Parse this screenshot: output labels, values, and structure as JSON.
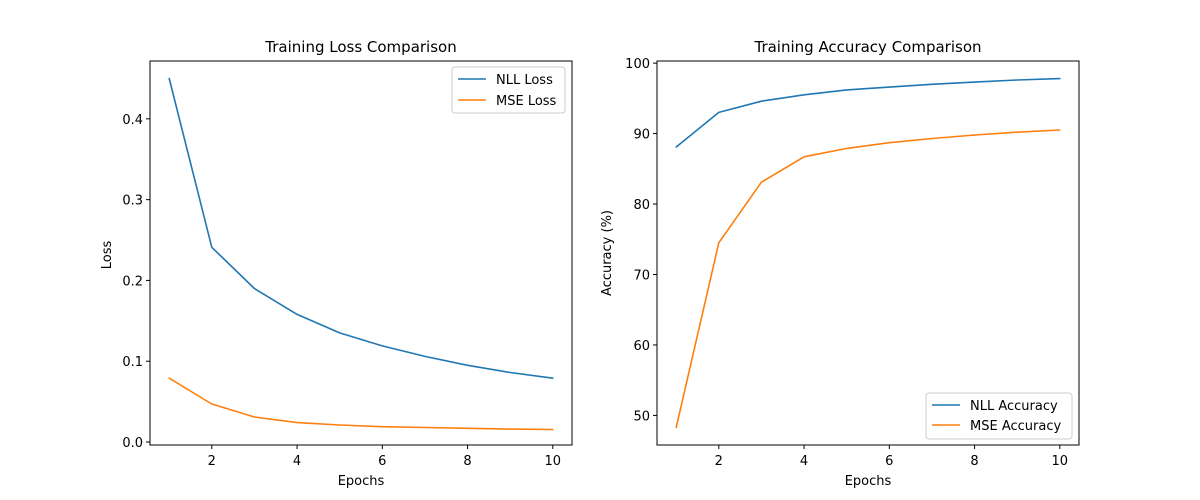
{
  "chart_data": [
    {
      "type": "line",
      "title": "Training Loss Comparison",
      "xlabel": "Epochs",
      "ylabel": "Loss",
      "x": [
        1,
        2,
        3,
        4,
        5,
        6,
        7,
        8,
        9,
        10
      ],
      "xlim": [
        0.55,
        10.45
      ],
      "ylim": [
        -0.0037,
        0.4716
      ],
      "xticks": [
        2,
        4,
        6,
        8,
        10
      ],
      "xtick_labels": [
        "2",
        "4",
        "6",
        "8",
        "10"
      ],
      "yticks": [
        0.0,
        0.1,
        0.2,
        0.3,
        0.4
      ],
      "ytick_labels": [
        "0.0",
        "0.1",
        "0.2",
        "0.3",
        "0.4"
      ],
      "legend_position": "top-right",
      "series": [
        {
          "name": "NLL Loss",
          "color": "#1f77b4",
          "values": [
            0.45,
            0.241,
            0.19,
            0.158,
            0.135,
            0.119,
            0.106,
            0.095,
            0.086,
            0.079
          ]
        },
        {
          "name": "MSE Loss",
          "color": "#ff7f0e",
          "values": [
            0.079,
            0.047,
            0.031,
            0.024,
            0.021,
            0.019,
            0.018,
            0.017,
            0.016,
            0.0155
          ]
        }
      ]
    },
    {
      "type": "line",
      "title": "Training Accuracy Comparison",
      "xlabel": "Epochs",
      "ylabel": "Accuracy (%)",
      "x": [
        1,
        2,
        3,
        4,
        5,
        6,
        7,
        8,
        9,
        10
      ],
      "xlim": [
        0.55,
        10.45
      ],
      "ylim": [
        45.8,
        100.3
      ],
      "xticks": [
        2,
        4,
        6,
        8,
        10
      ],
      "xtick_labels": [
        "2",
        "4",
        "6",
        "8",
        "10"
      ],
      "yticks": [
        50,
        60,
        70,
        80,
        90,
        100
      ],
      "ytick_labels": [
        "50",
        "60",
        "70",
        "80",
        "90",
        "100"
      ],
      "legend_position": "bottom-right",
      "series": [
        {
          "name": "NLL Accuracy",
          "color": "#1f77b4",
          "values": [
            88.1,
            93.0,
            94.6,
            95.5,
            96.2,
            96.6,
            97.0,
            97.3,
            97.6,
            97.8
          ]
        },
        {
          "name": "MSE Accuracy",
          "color": "#ff7f0e",
          "values": [
            48.3,
            74.5,
            83.1,
            86.7,
            87.9,
            88.7,
            89.3,
            89.8,
            90.2,
            90.5
          ]
        }
      ]
    }
  ]
}
